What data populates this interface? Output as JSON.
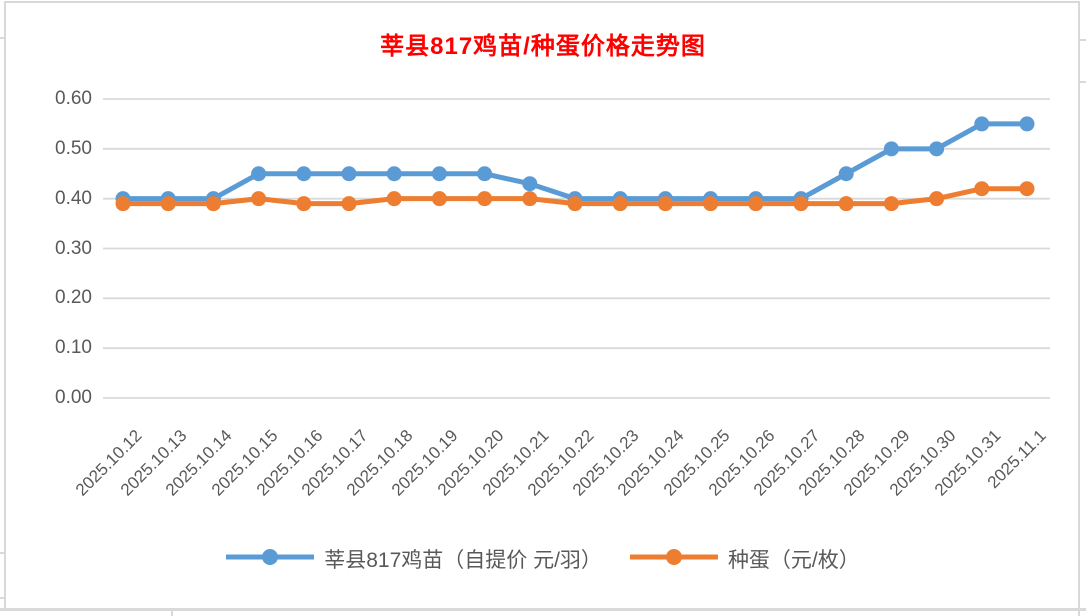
{
  "chart_data": {
    "type": "line",
    "title": "莘县817鸡苗/种蛋价格走势图",
    "title_color": "#FF0000",
    "categories": [
      "2025.10.12",
      "2025.10.13",
      "2025.10.14",
      "2025.10.15",
      "2025.10.16",
      "2025.10.17",
      "2025.10.18",
      "2025.10.19",
      "2025.10.20",
      "2025.10.21",
      "2025.10.22",
      "2025.10.23",
      "2025.10.24",
      "2025.10.25",
      "2025.10.26",
      "2025.10.27",
      "2025.10.28",
      "2025.10.29",
      "2025.10.30",
      "2025.10.31",
      "2025.11.1"
    ],
    "series": [
      {
        "name": "莘县817鸡苗（自提价 元/羽）",
        "color": "#5B9BD5",
        "values": [
          0.4,
          0.4,
          0.4,
          0.45,
          0.45,
          0.45,
          0.45,
          0.45,
          0.45,
          0.43,
          0.4,
          0.4,
          0.4,
          0.4,
          0.4,
          0.4,
          0.45,
          0.5,
          0.5,
          0.55,
          0.55
        ]
      },
      {
        "name": "种蛋（元/枚）",
        "color": "#ED7D31",
        "values": [
          0.39,
          0.39,
          0.39,
          0.4,
          0.39,
          0.39,
          0.4,
          0.4,
          0.4,
          0.4,
          0.39,
          0.39,
          0.39,
          0.39,
          0.39,
          0.39,
          0.39,
          0.39,
          0.4,
          0.42,
          0.42
        ]
      }
    ],
    "xlabel": "",
    "ylabel": "",
    "ylim": [
      0,
      0.6
    ],
    "ytick_step": 0.1,
    "ytick_labels": [
      "0.00",
      "0.10",
      "0.20",
      "0.30",
      "0.40",
      "0.50",
      "0.60"
    ],
    "grid": true,
    "gridline_color": "#D9D9D9",
    "axis_label_color": "#595959",
    "legend_position": "bottom",
    "marker": "circle"
  }
}
